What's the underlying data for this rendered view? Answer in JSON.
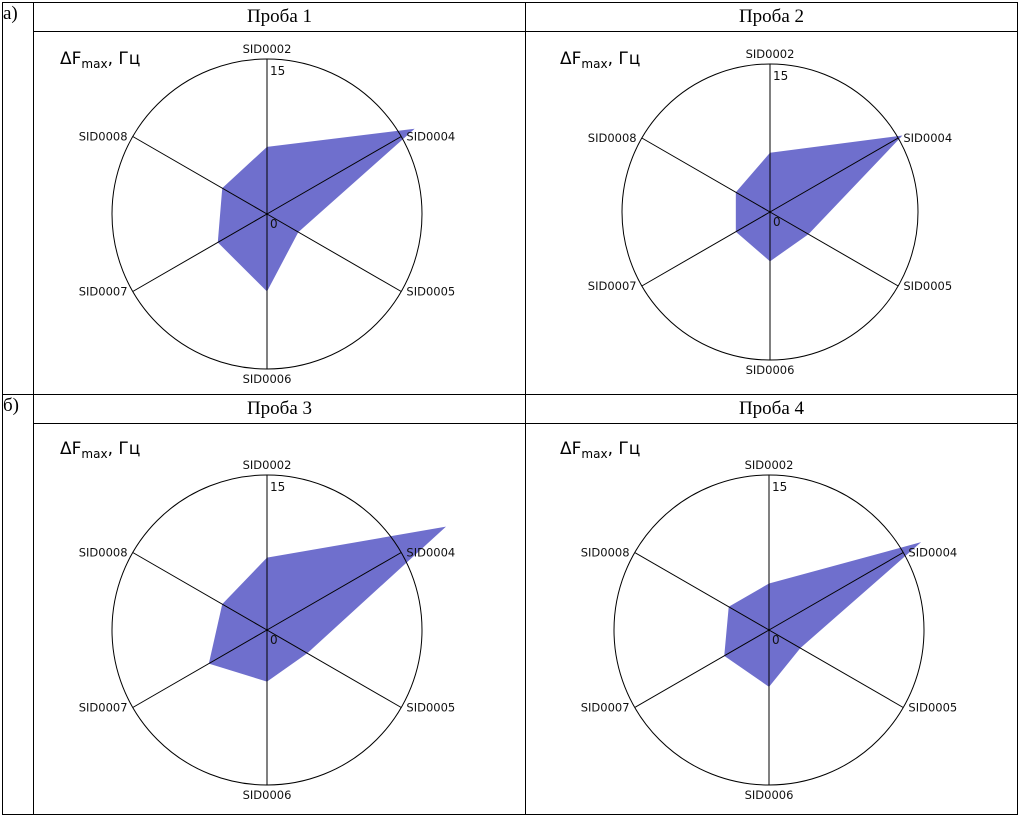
{
  "row_labels": [
    "а)",
    "б)"
  ],
  "unit_label": {
    "main": "ΔF",
    "sub": "max",
    "suffix": ", Гц"
  },
  "colors": {
    "fill": "#6f6fcd",
    "stroke": "#000000"
  },
  "chart_data": [
    {
      "type": "radar",
      "title": "Проба 1",
      "axes": [
        "SID0002",
        "SID0004",
        "SID0005",
        "SID0006",
        "SID0007",
        "SID0008"
      ],
      "values": [
        6.5,
        16.5,
        3.5,
        7.5,
        5.5,
        5.0
      ],
      "range": [
        0,
        15
      ],
      "tick_labels": [
        "0",
        "15"
      ]
    },
    {
      "type": "radar",
      "title": "Проба 2",
      "axes": [
        "SID0002",
        "SID0004",
        "SID0005",
        "SID0006",
        "SID0007",
        "SID0008"
      ],
      "values": [
        6.0,
        15.5,
        4.5,
        5.0,
        4.0,
        4.0
      ],
      "range": [
        0,
        15
      ],
      "tick_labels": [
        "0",
        "15"
      ]
    },
    {
      "type": "radar",
      "title": "Проба 3",
      "axes": [
        "SID0002",
        "SID0004",
        "SID0005",
        "SID0006",
        "SID0007",
        "SID0008"
      ],
      "values": [
        7.0,
        20.0,
        4.5,
        5.0,
        6.5,
        5.0
      ],
      "range": [
        0,
        15
      ],
      "tick_labels": [
        "0",
        "15"
      ]
    },
    {
      "type": "radar",
      "title": "Проба 4",
      "axes": [
        "SID0002",
        "SID0004",
        "SID0005",
        "SID0006",
        "SID0007",
        "SID0008"
      ],
      "values": [
        4.5,
        17.0,
        3.5,
        5.5,
        5.0,
        4.5
      ],
      "range": [
        0,
        15
      ],
      "tick_labels": [
        "0",
        "15"
      ]
    }
  ]
}
